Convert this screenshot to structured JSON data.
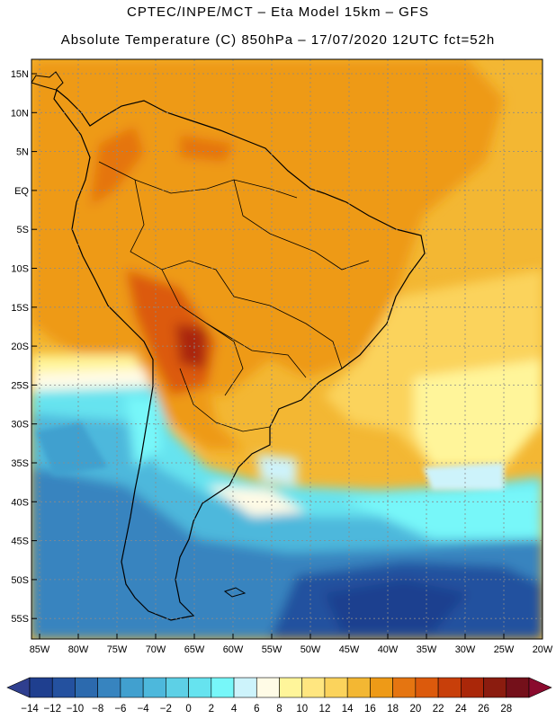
{
  "header": {
    "title_line1": "CPTEC/INPE/MCT –  Eta Model 15km – GFS",
    "title_line2": "Absolute Temperature (C) 850hPa – 17/07/2020 12UTC fct=52h"
  },
  "map": {
    "lat_labels": [
      "15N",
      "10N",
      "5N",
      "EQ",
      "5S",
      "10S",
      "15S",
      "20S",
      "25S",
      "30S",
      "35S",
      "40S",
      "45S",
      "50S",
      "55S"
    ],
    "lon_labels": [
      "85W",
      "80W",
      "75W",
      "70W",
      "65W",
      "60W",
      "55W",
      "50W",
      "45W",
      "40W",
      "35W",
      "30W",
      "25W",
      "20W"
    ]
  },
  "colorbar": {
    "labels": [
      "-14",
      "-12",
      "-10",
      "-8",
      "-6",
      "-4",
      "-2",
      "0",
      "2",
      "4",
      "6",
      "8",
      "10",
      "12",
      "14",
      "16",
      "18",
      "20",
      "22",
      "24",
      "26",
      "28"
    ],
    "colors": [
      "#1f3f8f",
      "#24519f",
      "#2c6aae",
      "#3784bf",
      "#41a0cf",
      "#4db8dc",
      "#5dd0e6",
      "#66e3ef",
      "#77f7f9",
      "#cdf3fb",
      "#fffbe6",
      "#fff59a",
      "#ffe680",
      "#fbd35c",
      "#f3b733",
      "#ee9a17",
      "#e57511",
      "#dc5a0c",
      "#c83f0a",
      "#aa2709",
      "#8b1c0f",
      "#74101a"
    ],
    "under_color": "#2f3f8f",
    "over_color": "#8a0a2e"
  }
}
